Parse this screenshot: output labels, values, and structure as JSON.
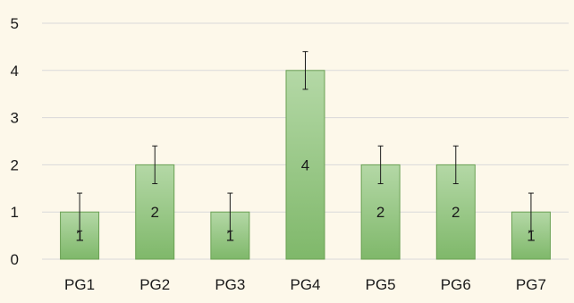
{
  "chart_data": {
    "type": "bar",
    "categories": [
      "PG1",
      "PG2",
      "PG3",
      "PG4",
      "PG5",
      "PG6",
      "PG7"
    ],
    "values": [
      1,
      2,
      1,
      4,
      2,
      2,
      1
    ],
    "error": [
      0.4,
      0.4,
      0.4,
      0.4,
      0.4,
      0.4,
      0.4
    ],
    "data_labels": [
      "1",
      "2",
      "1",
      "4",
      "2",
      "2",
      "1"
    ],
    "ylim": [
      0,
      5
    ],
    "yticks": [
      0,
      1,
      2,
      3,
      4,
      5
    ],
    "title": "",
    "xlabel": "",
    "ylabel": "",
    "grid": "horizontal",
    "legend": "none",
    "colors": {
      "background": "#fdf8ea",
      "bar_top": "#b4d8a6",
      "bar_bottom": "#7fb86a",
      "bar_border": "#6aa154",
      "gridline": "#d9d9d9",
      "error_bar": "#1a1a1a"
    }
  }
}
